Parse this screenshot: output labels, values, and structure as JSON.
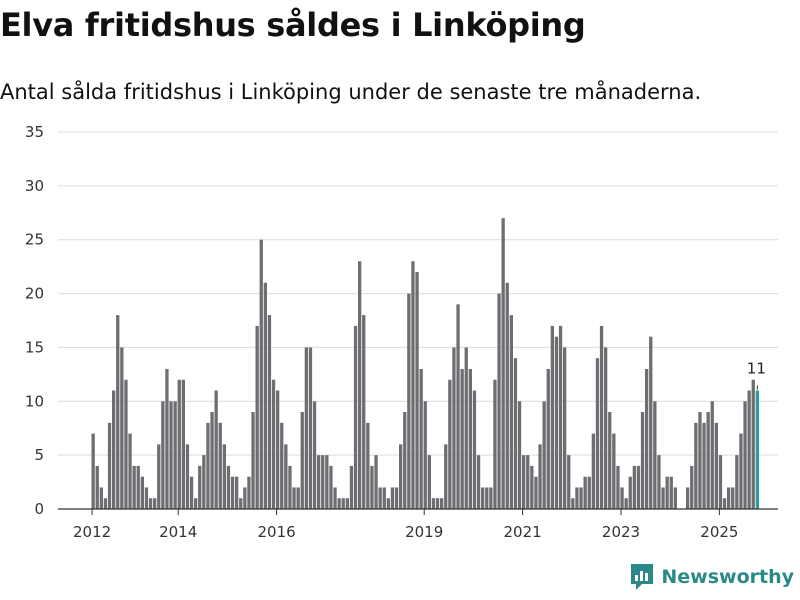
{
  "chart_data": {
    "type": "bar",
    "title": "Elva fritidshus såldes i Linköping",
    "subtitle": "Antal sålda fritidshus i Linköping under de senaste tre månaderna.",
    "xlabel": "",
    "ylabel": "",
    "ylim": [
      0,
      35
    ],
    "yticks": [
      0,
      5,
      10,
      15,
      20,
      25,
      30,
      35
    ],
    "xticks": [
      {
        "label": "2012",
        "index": 0
      },
      {
        "label": "2014",
        "index": 21
      },
      {
        "label": "2016",
        "index": 45
      },
      {
        "label": "2019",
        "index": 81
      },
      {
        "label": "2021",
        "index": 105
      },
      {
        "label": "2023",
        "index": 129
      },
      {
        "label": "2025",
        "index": 153
      }
    ],
    "values": [
      7,
      4,
      2,
      1,
      8,
      11,
      18,
      15,
      12,
      7,
      4,
      4,
      3,
      2,
      1,
      1,
      6,
      10,
      13,
      10,
      10,
      12,
      12,
      6,
      3,
      1,
      4,
      5,
      8,
      9,
      11,
      8,
      6,
      4,
      3,
      3,
      1,
      2,
      3,
      9,
      17,
      25,
      21,
      18,
      12,
      11,
      8,
      6,
      4,
      2,
      2,
      9,
      15,
      15,
      10,
      5,
      5,
      5,
      4,
      2,
      1,
      1,
      1,
      4,
      17,
      23,
      18,
      8,
      4,
      5,
      2,
      2,
      1,
      2,
      2,
      6,
      9,
      20,
      23,
      22,
      13,
      10,
      5,
      1,
      1,
      1,
      6,
      12,
      15,
      19,
      13,
      15,
      13,
      11,
      5,
      2,
      2,
      2,
      12,
      20,
      27,
      21,
      18,
      14,
      10,
      5,
      5,
      4,
      3,
      6,
      10,
      13,
      17,
      16,
      17,
      15,
      5,
      1,
      2,
      2,
      3,
      3,
      7,
      14,
      17,
      15,
      9,
      7,
      4,
      2,
      1,
      3,
      4,
      4,
      9,
      13,
      16,
      10,
      5,
      2,
      3,
      3,
      2,
      0,
      0,
      2,
      4,
      8,
      9,
      8,
      9,
      10,
      8,
      5,
      1,
      2,
      2,
      5,
      7,
      10,
      11,
      12,
      11
    ],
    "highlight_color": "#2a9d96",
    "bar_color": "#6e6d72",
    "data_label": "11"
  },
  "brand": {
    "name": "Newsworthy"
  }
}
